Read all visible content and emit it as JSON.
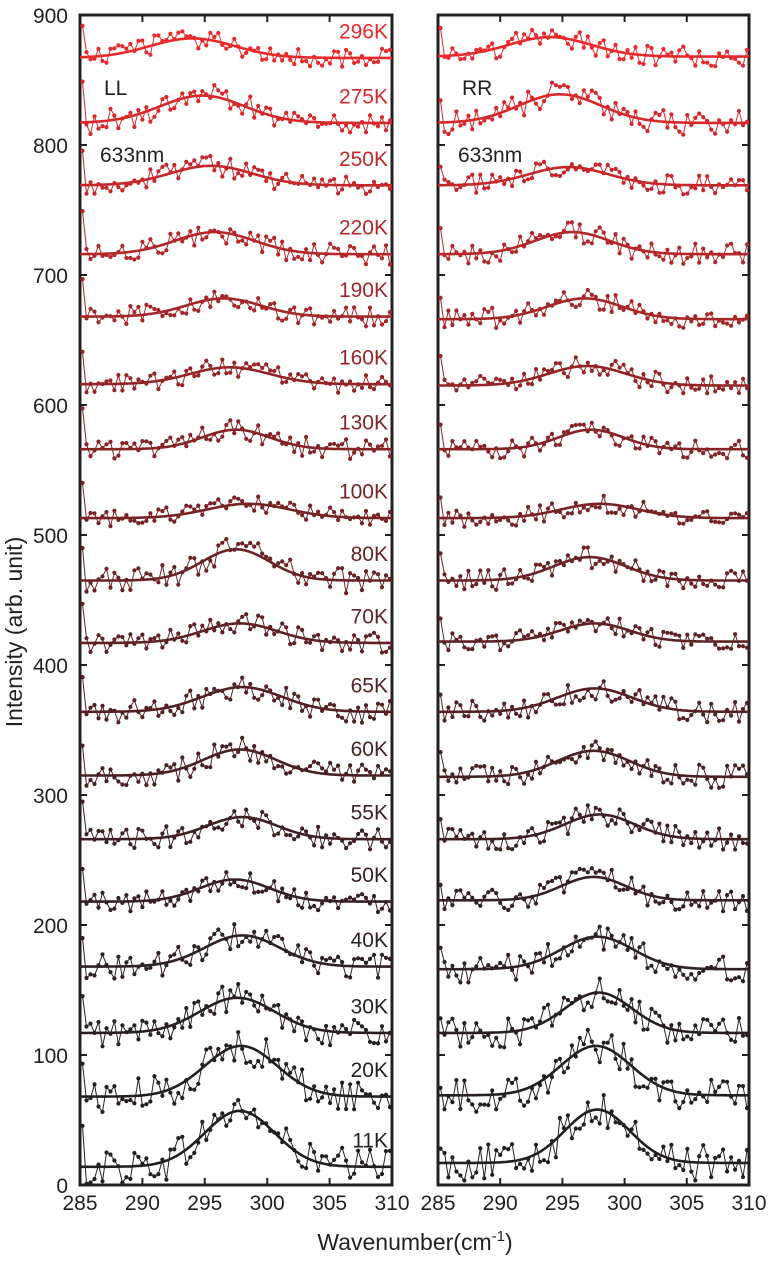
{
  "chart_data": {
    "type": "line",
    "ylabel": "Intensity (arb. unit)",
    "xlabel": "Wavenumber(cm",
    "xlabel_sup": "-1",
    "xlabel_close": ")",
    "x_ticks": [
      "285",
      "290",
      "295",
      "300",
      "305",
      "310"
    ],
    "y_ticks": [
      "0",
      "100",
      "200",
      "300",
      "400",
      "500",
      "600",
      "700",
      "800",
      "900"
    ],
    "xlim": [
      285,
      310
    ],
    "ylim": [
      0,
      900
    ],
    "panels": [
      {
        "label": "LL",
        "excitation": "633nm",
        "series": [
          {
            "name": "11K",
            "baseline": 14,
            "amplitude": 43,
            "center": 297.8,
            "width": 2.8
          },
          {
            "name": "20K",
            "baseline": 68,
            "amplitude": 39,
            "center": 297.9,
            "width": 2.9
          },
          {
            "name": "30K",
            "baseline": 117,
            "amplitude": 27,
            "center": 297.6,
            "width": 3.0
          },
          {
            "name": "40K",
            "baseline": 168,
            "amplitude": 24,
            "center": 298.0,
            "width": 3.0
          },
          {
            "name": "50K",
            "baseline": 218,
            "amplitude": 17,
            "center": 297.4,
            "width": 2.8
          },
          {
            "name": "55K",
            "baseline": 266,
            "amplitude": 17,
            "center": 298.0,
            "width": 2.8
          },
          {
            "name": "60K",
            "baseline": 315,
            "amplitude": 20,
            "center": 297.8,
            "width": 2.9
          },
          {
            "name": "65K",
            "baseline": 364,
            "amplitude": 19,
            "center": 298.0,
            "width": 3.2
          },
          {
            "name": "70K",
            "baseline": 417,
            "amplitude": 15,
            "center": 297.8,
            "width": 3.0
          },
          {
            "name": "80K",
            "baseline": 465,
            "amplitude": 24,
            "center": 297.5,
            "width": 2.7
          },
          {
            "name": "100K",
            "baseline": 513,
            "amplitude": 11,
            "center": 298.5,
            "width": 3.3
          },
          {
            "name": "130K",
            "baseline": 566,
            "amplitude": 15,
            "center": 297.5,
            "width": 2.7
          },
          {
            "name": "160K",
            "baseline": 616,
            "amplitude": 13,
            "center": 297.0,
            "width": 3.2
          },
          {
            "name": "190K",
            "baseline": 668,
            "amplitude": 14,
            "center": 296.5,
            "width": 3.0
          },
          {
            "name": "220K",
            "baseline": 716,
            "amplitude": 17,
            "center": 295.8,
            "width": 3.2
          },
          {
            "name": "250K",
            "baseline": 769,
            "amplitude": 15,
            "center": 295.5,
            "width": 3.3
          },
          {
            "name": "275K",
            "baseline": 817,
            "amplitude": 21,
            "center": 294.8,
            "width": 3.4
          },
          {
            "name": "296K",
            "baseline": 867,
            "amplitude": 15,
            "center": 294.0,
            "width": 3.4
          }
        ]
      },
      {
        "label": "RR",
        "excitation": "633nm",
        "series": [
          {
            "name": "11K",
            "baseline": 17,
            "amplitude": 41,
            "center": 297.8,
            "width": 2.6
          },
          {
            "name": "20K",
            "baseline": 69,
            "amplitude": 38,
            "center": 297.7,
            "width": 2.8
          },
          {
            "name": "30K",
            "baseline": 117,
            "amplitude": 31,
            "center": 297.9,
            "width": 2.7
          },
          {
            "name": "40K",
            "baseline": 166,
            "amplitude": 25,
            "center": 297.8,
            "width": 2.9
          },
          {
            "name": "50K",
            "baseline": 219,
            "amplitude": 18,
            "center": 297.5,
            "width": 2.6
          },
          {
            "name": "55K",
            "baseline": 266,
            "amplitude": 19,
            "center": 298.0,
            "width": 2.8
          },
          {
            "name": "60K",
            "baseline": 314,
            "amplitude": 20,
            "center": 297.5,
            "width": 2.9
          },
          {
            "name": "65K",
            "baseline": 364,
            "amplitude": 18,
            "center": 297.6,
            "width": 3.0
          },
          {
            "name": "70K",
            "baseline": 418,
            "amplitude": 14,
            "center": 297.6,
            "width": 2.8
          },
          {
            "name": "80K",
            "baseline": 465,
            "amplitude": 18,
            "center": 297.2,
            "width": 2.9
          },
          {
            "name": "100K",
            "baseline": 513,
            "amplitude": 11,
            "center": 298.0,
            "width": 3.1
          },
          {
            "name": "130K",
            "baseline": 566,
            "amplitude": 15,
            "center": 297.3,
            "width": 2.6
          },
          {
            "name": "160K",
            "baseline": 615,
            "amplitude": 15,
            "center": 297.0,
            "width": 3.1
          },
          {
            "name": "190K",
            "baseline": 666,
            "amplitude": 16,
            "center": 296.8,
            "width": 3.0
          },
          {
            "name": "220K",
            "baseline": 716,
            "amplitude": 17,
            "center": 295.8,
            "width": 3.0
          },
          {
            "name": "250K",
            "baseline": 769,
            "amplitude": 14,
            "center": 295.5,
            "width": 3.2
          },
          {
            "name": "275K",
            "baseline": 817,
            "amplitude": 22,
            "center": 294.8,
            "width": 3.3
          },
          {
            "name": "296K",
            "baseline": 868,
            "amplitude": 15,
            "center": 294.0,
            "width": 3.3
          }
        ]
      }
    ],
    "colors": {
      "axis": "#231f20",
      "cold": "#231f20",
      "hot": "#e8292c"
    }
  }
}
